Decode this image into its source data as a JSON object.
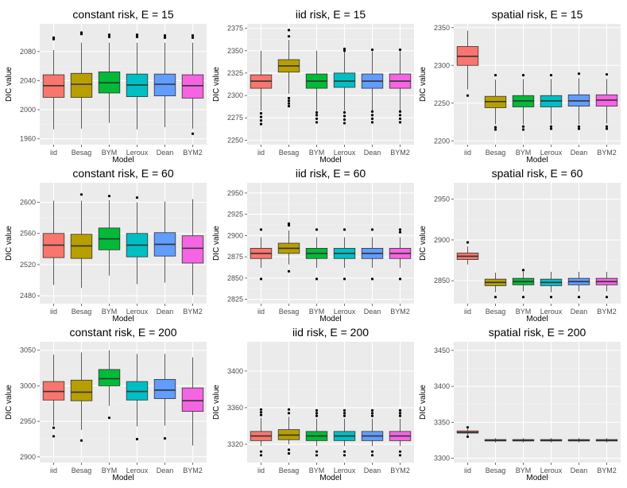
{
  "colors": {
    "panel_bg": "#ebebeb",
    "grid_major": "#ffffff",
    "grid_minor": "#f2f2f2",
    "tick_text": "#4d4d4d",
    "box_outline": "#333333",
    "outlier": "#000000",
    "series": [
      "#f8766d",
      "#b79f00",
      "#00ba38",
      "#00bfc4",
      "#619cff",
      "#f564e3"
    ]
  },
  "chart_data": [
    {
      "type": "box",
      "title": "constant risk, E = 15",
      "xlabel": "Model",
      "ylabel": "DIC value",
      "categories": [
        "iid",
        "Besag",
        "BYM",
        "Leroux",
        "Dean",
        "BYM2"
      ],
      "ylim": [
        1952,
        2118
      ],
      "yticks": [
        1960,
        2000,
        2040,
        2080
      ],
      "ytick_labels": [
        "1960",
        "2000",
        "2040",
        "2080"
      ],
      "boxes": [
        {
          "low": 1973,
          "q1": 2017,
          "median": 2033,
          "q3": 2048,
          "high": 2082,
          "outliers": [
            2097,
            2099
          ]
        },
        {
          "low": 1974,
          "q1": 2017,
          "median": 2035,
          "q3": 2050,
          "high": 2092,
          "outliers": [
            2104,
            2106
          ]
        },
        {
          "low": 1982,
          "q1": 2023,
          "median": 2037,
          "q3": 2052,
          "high": 2092,
          "outliers": [
            2100,
            2103
          ]
        },
        {
          "low": 1973,
          "q1": 2018,
          "median": 2034,
          "q3": 2049,
          "high": 2092,
          "outliers": [
            2100,
            2103
          ]
        },
        {
          "low": 1976,
          "q1": 2019,
          "median": 2035,
          "q3": 2049,
          "high": 2092,
          "outliers": [
            2099,
            2102
          ]
        },
        {
          "low": 1974,
          "q1": 2016,
          "median": 2033,
          "q3": 2048,
          "high": 2092,
          "outliers": [
            1967,
            2099,
            2102
          ]
        }
      ]
    },
    {
      "type": "box",
      "title": "iid risk, E = 15",
      "xlabel": "Model",
      "ylabel": "DIC value",
      "categories": [
        "iid",
        "Besag",
        "BYM",
        "Leroux",
        "Dean",
        "BYM2"
      ],
      "ylim": [
        2245,
        2380
      ],
      "yticks": [
        2250,
        2275,
        2300,
        2325,
        2350,
        2375
      ],
      "ytick_labels": [
        "2250",
        "2275",
        "2300",
        "2325",
        "2350",
        "2375"
      ],
      "boxes": [
        {
          "low": 2283,
          "q1": 2308,
          "median": 2316,
          "q3": 2323,
          "high": 2350,
          "outliers": [
            2268,
            2272,
            2276,
            2280
          ]
        },
        {
          "low": 2302,
          "q1": 2326,
          "median": 2333,
          "q3": 2340,
          "high": 2362,
          "outliers": [
            2288,
            2291,
            2294,
            2297,
            2366,
            2373
          ]
        },
        {
          "low": 2283,
          "q1": 2308,
          "median": 2316,
          "q3": 2324,
          "high": 2350,
          "outliers": [
            2270,
            2274,
            2278,
            2281
          ]
        },
        {
          "low": 2283,
          "q1": 2309,
          "median": 2316,
          "q3": 2325,
          "high": 2349,
          "outliers": [
            2269,
            2273,
            2277,
            2281,
            2350,
            2352
          ]
        },
        {
          "low": 2283,
          "q1": 2308,
          "median": 2316,
          "q3": 2324,
          "high": 2349,
          "outliers": [
            2270,
            2274,
            2278,
            2282,
            2351
          ]
        },
        {
          "low": 2283,
          "q1": 2308,
          "median": 2316,
          "q3": 2324,
          "high": 2349,
          "outliers": [
            2270,
            2274,
            2278,
            2282,
            2351
          ]
        }
      ]
    },
    {
      "type": "box",
      "title": "spatial risk, E = 15",
      "xlabel": "Model",
      "ylabel": "DIC value",
      "categories": [
        "iid",
        "Besag",
        "BYM",
        "Leroux",
        "Dean",
        "BYM2"
      ],
      "ylim": [
        2195,
        2355
      ],
      "yticks": [
        2200,
        2250,
        2300,
        2350
      ],
      "ytick_labels": [
        "2200",
        "2250",
        "2300",
        "2350"
      ],
      "boxes": [
        {
          "low": 2268,
          "q1": 2300,
          "median": 2312,
          "q3": 2325,
          "high": 2346,
          "outliers": [
            2260
          ]
        },
        {
          "low": 2222,
          "q1": 2244,
          "median": 2252,
          "q3": 2259,
          "high": 2281,
          "outliers": [
            2215,
            2218,
            2287
          ]
        },
        {
          "low": 2222,
          "q1": 2245,
          "median": 2253,
          "q3": 2260,
          "high": 2282,
          "outliers": [
            2215,
            2219,
            2287
          ]
        },
        {
          "low": 2222,
          "q1": 2245,
          "median": 2253,
          "q3": 2260,
          "high": 2282,
          "outliers": [
            2216,
            2219,
            2287
          ]
        },
        {
          "low": 2222,
          "q1": 2246,
          "median": 2253,
          "q3": 2261,
          "high": 2283,
          "outliers": [
            2216,
            2219,
            2289
          ]
        },
        {
          "low": 2223,
          "q1": 2246,
          "median": 2254,
          "q3": 2261,
          "high": 2282,
          "outliers": [
            2216,
            2219,
            2288
          ]
        }
      ]
    },
    {
      "type": "box",
      "title": "constant risk, E = 60",
      "xlabel": "Model",
      "ylabel": "DIC value",
      "categories": [
        "iid",
        "Besag",
        "BYM",
        "Leroux",
        "Dean",
        "BYM2"
      ],
      "ylim": [
        2470,
        2625
      ],
      "yticks": [
        2480,
        2520,
        2560,
        2600
      ],
      "ytick_labels": [
        "2480",
        "2520",
        "2560",
        "2600"
      ],
      "boxes": [
        {
          "low": 2494,
          "q1": 2529,
          "median": 2545,
          "q3": 2560,
          "high": 2602,
          "outliers": []
        },
        {
          "low": 2490,
          "q1": 2528,
          "median": 2544,
          "q3": 2559,
          "high": 2602,
          "outliers": [
            2610
          ]
        },
        {
          "low": 2506,
          "q1": 2539,
          "median": 2553,
          "q3": 2567,
          "high": 2603,
          "outliers": [
            2608
          ]
        },
        {
          "low": 2495,
          "q1": 2530,
          "median": 2545,
          "q3": 2560,
          "high": 2600,
          "outliers": [
            2606
          ]
        },
        {
          "low": 2497,
          "q1": 2531,
          "median": 2546,
          "q3": 2561,
          "high": 2601,
          "outliers": []
        },
        {
          "low": 2481,
          "q1": 2522,
          "median": 2541,
          "q3": 2557,
          "high": 2604,
          "outliers": []
        }
      ]
    },
    {
      "type": "box",
      "title": "iid risk, E = 60",
      "xlabel": "Model",
      "ylabel": "DIC value",
      "categories": [
        "iid",
        "Besag",
        "BYM",
        "Leroux",
        "Dean",
        "BYM2"
      ],
      "ylim": [
        2820,
        2962
      ],
      "yticks": [
        2825,
        2850,
        2875,
        2900,
        2925,
        2950
      ],
      "ytick_labels": [
        "2825",
        "2850",
        "2875",
        "2900",
        "2925",
        "2950"
      ],
      "boxes": [
        {
          "low": 2862,
          "q1": 2873,
          "median": 2879,
          "q3": 2885,
          "high": 2898,
          "outliers": [
            2849,
            2907
          ]
        },
        {
          "low": 2866,
          "q1": 2879,
          "median": 2885,
          "q3": 2891,
          "high": 2906,
          "outliers": [
            2858,
            2912,
            2914
          ]
        },
        {
          "low": 2862,
          "q1": 2873,
          "median": 2879,
          "q3": 2885,
          "high": 2898,
          "outliers": [
            2849,
            2907
          ]
        },
        {
          "low": 2862,
          "q1": 2873,
          "median": 2879,
          "q3": 2885,
          "high": 2898,
          "outliers": [
            2849,
            2907
          ]
        },
        {
          "low": 2862,
          "q1": 2873,
          "median": 2879,
          "q3": 2885,
          "high": 2898,
          "outliers": [
            2849,
            2907
          ]
        },
        {
          "low": 2862,
          "q1": 2873,
          "median": 2879,
          "q3": 2885,
          "high": 2898,
          "outliers": [
            2849,
            2904,
            2907
          ]
        }
      ]
    },
    {
      "type": "box",
      "title": "spatial risk, E = 60",
      "xlabel": "Model",
      "ylabel": "DIC value",
      "categories": [
        "iid",
        "Besag",
        "BYM",
        "Leroux",
        "Dean",
        "BYM2"
      ],
      "ylim": [
        2822,
        2970
      ],
      "yticks": [
        2850,
        2900,
        2950
      ],
      "ytick_labels": [
        "2850",
        "2900",
        "2950"
      ],
      "boxes": [
        {
          "low": 2870,
          "q1": 2876,
          "median": 2880,
          "q3": 2884,
          "high": 2892,
          "outliers": [
            2897
          ]
        },
        {
          "low": 2836,
          "q1": 2844,
          "median": 2848,
          "q3": 2852,
          "high": 2860,
          "outliers": [
            2830
          ]
        },
        {
          "low": 2837,
          "q1": 2845,
          "median": 2849,
          "q3": 2853,
          "high": 2861,
          "outliers": [
            2830,
            2863
          ]
        },
        {
          "low": 2836,
          "q1": 2844,
          "median": 2848,
          "q3": 2852,
          "high": 2861,
          "outliers": [
            2830
          ]
        },
        {
          "low": 2837,
          "q1": 2845,
          "median": 2849,
          "q3": 2853,
          "high": 2861,
          "outliers": [
            2830
          ]
        },
        {
          "low": 2837,
          "q1": 2845,
          "median": 2849,
          "q3": 2853,
          "high": 2861,
          "outliers": [
            2830
          ]
        }
      ]
    },
    {
      "type": "box",
      "title": "constant risk, E = 200",
      "xlabel": "Model",
      "ylabel": "DIC value",
      "categories": [
        "iid",
        "Besag",
        "BYM",
        "Leroux",
        "Dean",
        "BYM2"
      ],
      "ylim": [
        2892,
        3062
      ],
      "yticks": [
        2900,
        2950,
        3000,
        3050
      ],
      "ytick_labels": [
        "2900",
        "2950",
        "3000",
        "3050"
      ],
      "boxes": [
        {
          "low": 2944,
          "q1": 2980,
          "median": 2992,
          "q3": 3006,
          "high": 3044,
          "outliers": [
            2929,
            2941
          ]
        },
        {
          "low": 2938,
          "q1": 2979,
          "median": 2991,
          "q3": 3008,
          "high": 3047,
          "outliers": [
            2923
          ]
        },
        {
          "low": 2972,
          "q1": 3000,
          "median": 3010,
          "q3": 3023,
          "high": 3050,
          "outliers": [
            2955
          ]
        },
        {
          "low": 2943,
          "q1": 2980,
          "median": 2992,
          "q3": 3006,
          "high": 3045,
          "outliers": [
            2925
          ]
        },
        {
          "low": 2944,
          "q1": 2982,
          "median": 2994,
          "q3": 3009,
          "high": 3045,
          "outliers": [
            2926
          ]
        },
        {
          "low": 2916,
          "q1": 2964,
          "median": 2979,
          "q3": 2997,
          "high": 3040,
          "outliers": []
        }
      ]
    },
    {
      "type": "box",
      "title": "iid risk, E = 200",
      "xlabel": "Model",
      "ylabel": "DIC value",
      "categories": [
        "iid",
        "Besag",
        "BYM",
        "Leroux",
        "Dean",
        "BYM2"
      ],
      "ylim": [
        3300,
        3432
      ],
      "yticks": [
        3320,
        3360,
        3400
      ],
      "ytick_labels": [
        "3320",
        "3360",
        "3400"
      ],
      "boxes": [
        {
          "low": 3318,
          "q1": 3324,
          "median": 3329,
          "q3": 3334,
          "high": 3349,
          "outliers": [
            3308,
            3312,
            3352,
            3355,
            3358
          ]
        },
        {
          "low": 3320,
          "q1": 3325,
          "median": 3330,
          "q3": 3336,
          "high": 3350,
          "outliers": [
            3310,
            3314,
            3354,
            3358
          ]
        },
        {
          "low": 3318,
          "q1": 3324,
          "median": 3329,
          "q3": 3334,
          "high": 3348,
          "outliers": [
            3308,
            3312,
            3351,
            3354,
            3357
          ]
        },
        {
          "low": 3318,
          "q1": 3324,
          "median": 3329,
          "q3": 3334,
          "high": 3348,
          "outliers": [
            3308,
            3312,
            3351,
            3354,
            3357
          ]
        },
        {
          "low": 3318,
          "q1": 3324,
          "median": 3329,
          "q3": 3334,
          "high": 3348,
          "outliers": [
            3308,
            3312,
            3351,
            3354,
            3357
          ]
        },
        {
          "low": 3318,
          "q1": 3324,
          "median": 3329,
          "q3": 3334,
          "high": 3348,
          "outliers": [
            3308,
            3312,
            3351,
            3354,
            3357
          ]
        }
      ]
    },
    {
      "type": "box",
      "title": "spatial risk, E = 200",
      "xlabel": "Model",
      "ylabel": "DIC value",
      "categories": [
        "iid",
        "Besag",
        "BYM",
        "Leroux",
        "Dean",
        "BYM2"
      ],
      "ylim": [
        3294,
        3462
      ],
      "yticks": [
        3300,
        3350,
        3400,
        3450
      ],
      "ytick_labels": [
        "3300",
        "3350",
        "3400",
        "3450"
      ],
      "boxes": [
        {
          "low": 3332,
          "q1": 3335,
          "median": 3336,
          "q3": 3338,
          "high": 3341,
          "outliers": [
            3330,
            3343
          ]
        },
        {
          "low": 3322,
          "q1": 3324,
          "median": 3325,
          "q3": 3326,
          "high": 3328,
          "outliers": []
        },
        {
          "low": 3322,
          "q1": 3324,
          "median": 3325,
          "q3": 3326,
          "high": 3328,
          "outliers": []
        },
        {
          "low": 3322,
          "q1": 3324,
          "median": 3325,
          "q3": 3326,
          "high": 3328,
          "outliers": []
        },
        {
          "low": 3322,
          "q1": 3324,
          "median": 3325,
          "q3": 3326,
          "high": 3328,
          "outliers": []
        },
        {
          "low": 3322,
          "q1": 3324,
          "median": 3325,
          "q3": 3326,
          "high": 3328,
          "outliers": []
        }
      ]
    }
  ]
}
